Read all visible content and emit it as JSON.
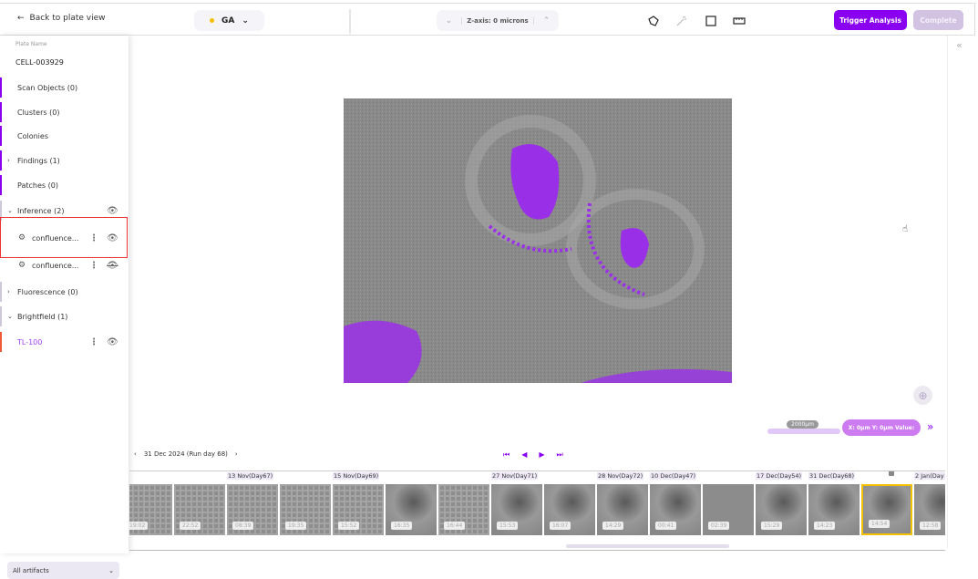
{
  "header": {
    "back_label": "Back to plate view",
    "stain_selector": {
      "value": "GA",
      "dot_color": "#f5c000"
    },
    "zaxis_label": "Z-axis: 0 microns",
    "tools": [
      "polygon-icon",
      "magic-wand-icon",
      "rectangle-icon",
      "ruler-icon"
    ],
    "trigger_label": "Trigger Analysis",
    "complete_label": "Complete",
    "accent_color": "#8a00f0"
  },
  "sidebar": {
    "plate_name_label": "Plate Name",
    "plate_name": "CELL-003929",
    "items": [
      {
        "label": "Scan Objects (0)"
      },
      {
        "label": "Clusters (0)"
      },
      {
        "label": "Colonies"
      },
      {
        "label": "Findings (1)",
        "chevron": ">"
      },
      {
        "label": "Patches (0)"
      },
      {
        "label": "Inference (2)",
        "chevron": "v"
      },
      {
        "label": "confluence...",
        "visible": true
      },
      {
        "label": "confluence...",
        "visible": false
      },
      {
        "label": "Fluorescence (0)",
        "chevron": ">"
      },
      {
        "label": "Brightfield (1)",
        "chevron": "v"
      },
      {
        "label": "TL-100",
        "visible": true
      }
    ],
    "artifacts_select": "All artifacts"
  },
  "viewer": {
    "scale_label": "2000µm",
    "coords_label": "X: 0µm Y: 0µm Value:"
  },
  "timeline": {
    "current_date": "31 Dec 2024 (Run day 68)",
    "thumbnails": [
      {
        "time": "19:02",
        "kind": "grid"
      },
      {
        "time": "22:52",
        "kind": "grid"
      },
      {
        "time": "08:39",
        "kind": "grid",
        "date": "13 Nov(Day67)"
      },
      {
        "time": "19:35",
        "kind": "grid"
      },
      {
        "time": "15:52",
        "kind": "grid",
        "date": "15 Nov(Day69)"
      },
      {
        "time": "16:35",
        "kind": "cell"
      },
      {
        "time": "16:44",
        "kind": "grid"
      },
      {
        "time": "15:53",
        "kind": "cell",
        "date": "27 Nov(Day71)"
      },
      {
        "time": "16:07",
        "kind": "cell"
      },
      {
        "time": "14:29",
        "kind": "cell",
        "date": "28 Nov(Day72)"
      },
      {
        "time": "00:41",
        "kind": "cell",
        "date": "10 Dec(Day47)"
      },
      {
        "time": "02:39",
        "kind": "plain"
      },
      {
        "time": "15:29",
        "kind": "cell",
        "date": "17 Dec(Day54)"
      },
      {
        "time": "14:23",
        "kind": "cell",
        "date": "31 Dec(Day68)"
      },
      {
        "time": "14:54",
        "kind": "cell",
        "selected": true
      },
      {
        "time": "12:58",
        "kind": "cell",
        "date": "2 Jan(Day"
      }
    ]
  }
}
